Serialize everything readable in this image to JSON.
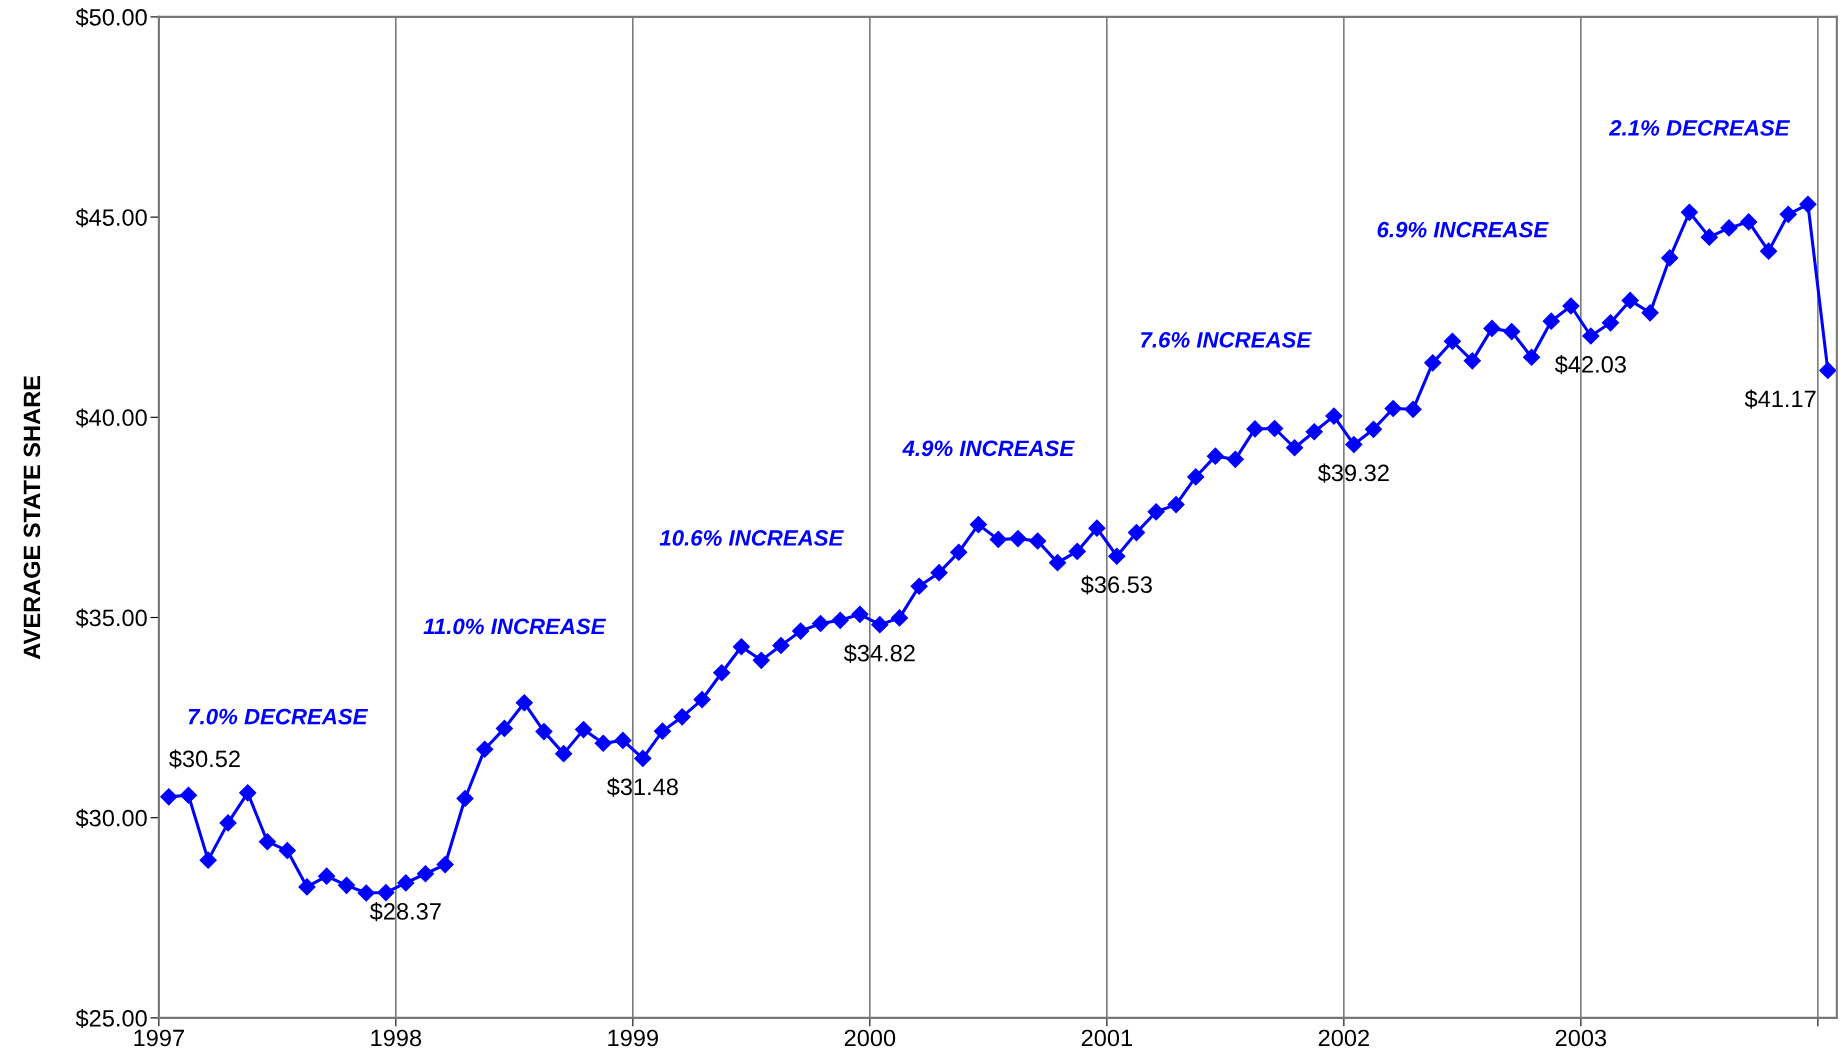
{
  "chart_data": {
    "type": "line",
    "ylabel": "AVERAGE STATE SHARE",
    "x": [
      1997.042,
      1997.125,
      1997.208,
      1997.292,
      1997.375,
      1997.458,
      1997.542,
      1997.625,
      1997.708,
      1997.792,
      1997.875,
      1997.958,
      1998.042,
      1998.125,
      1998.208,
      1998.292,
      1998.375,
      1998.458,
      1998.542,
      1998.625,
      1998.708,
      1998.792,
      1998.875,
      1998.958,
      1999.042,
      1999.125,
      1999.208,
      1999.292,
      1999.375,
      1999.458,
      1999.542,
      1999.625,
      1999.708,
      1999.792,
      1999.875,
      1999.958,
      2000.042,
      2000.125,
      2000.208,
      2000.292,
      2000.375,
      2000.458,
      2000.542,
      2000.625,
      2000.708,
      2000.792,
      2000.875,
      2000.958,
      2001.042,
      2001.125,
      2001.208,
      2001.292,
      2001.375,
      2001.458,
      2001.542,
      2001.625,
      2001.708,
      2001.792,
      2001.875,
      2001.958,
      2002.042,
      2002.125,
      2002.208,
      2002.292,
      2002.375,
      2002.458,
      2002.542,
      2002.625,
      2002.708,
      2002.792,
      2002.875,
      2002.958,
      2003.042,
      2003.125,
      2003.208,
      2003.292,
      2003.375,
      2003.458,
      2003.542,
      2003.625,
      2003.708,
      2003.792,
      2003.875,
      2003.958,
      2004.042
    ],
    "series": [
      {
        "color": "#0000ff",
        "values": [
          30.52,
          30.56,
          28.94,
          29.87,
          30.62,
          29.4,
          29.18,
          28.27,
          28.54,
          28.31,
          28.12,
          28.13,
          28.37,
          28.6,
          28.83,
          30.48,
          31.71,
          32.23,
          32.87,
          32.15,
          31.6,
          32.2,
          31.86,
          31.93,
          31.48,
          32.16,
          32.52,
          32.95,
          33.62,
          34.27,
          33.93,
          34.3,
          34.66,
          34.85,
          34.93,
          35.08,
          34.82,
          34.99,
          35.78,
          36.12,
          36.63,
          37.32,
          36.95,
          36.97,
          36.91,
          36.37,
          36.65,
          37.23,
          36.53,
          37.12,
          37.64,
          37.82,
          38.51,
          39.03,
          38.95,
          39.71,
          39.72,
          39.24,
          39.64,
          40.03,
          39.32,
          39.7,
          40.22,
          40.2,
          41.36,
          41.9,
          41.41,
          42.22,
          42.14,
          41.5,
          42.4,
          42.78,
          42.03,
          42.36,
          42.92,
          42.61,
          43.98,
          45.12,
          44.5,
          44.73,
          44.88,
          44.15,
          45.07,
          45.32,
          41.17
        ]
      }
    ],
    "xlim": [
      1997,
      2004.08
    ],
    "xticks": [
      1997,
      1998,
      1999,
      2000,
      2001,
      2002,
      2003,
      {
        "value": 2004,
        "label": null
      }
    ],
    "ylim": [
      25,
      50
    ],
    "yticks": [
      {
        "value": 25,
        "label": "$25.00"
      },
      {
        "value": 30,
        "label": "$30.00"
      },
      {
        "value": 35,
        "label": "$35.00"
      },
      {
        "value": 40,
        "label": "$40.00"
      },
      {
        "value": 45,
        "label": "$45.00"
      },
      {
        "value": 50,
        "label": "$50.00"
      }
    ],
    "grid": "x",
    "marker": "diamond",
    "line_style": "solid",
    "annotations": [
      "7.0% DECREASE",
      "11.0% INCREASE",
      "10.6% INCREASE",
      "4.9% INCREASE",
      "7.6% INCREASE",
      "6.9% INCREASE",
      "2.1% DECREASE",
      {
        "text": "$30.52",
        "x": 1997.042,
        "y": 30.52
      },
      {
        "text": "$28.37",
        "x": 1998.042,
        "y": 28.37
      },
      {
        "text": "$31.48",
        "x": 1999.042,
        "y": 31.48
      },
      {
        "text": "$34.82",
        "x": 2000.042,
        "y": 34.82
      },
      {
        "text": "$36.53",
        "x": 2001.042,
        "y": 36.53
      },
      {
        "text": "$39.32",
        "x": 2002.042,
        "y": 39.32
      },
      {
        "text": "$42.03",
        "x": 2003.042,
        "y": 42.03
      },
      {
        "text": "$41.17",
        "x": 2004.042,
        "y": 41.17
      }
    ]
  }
}
